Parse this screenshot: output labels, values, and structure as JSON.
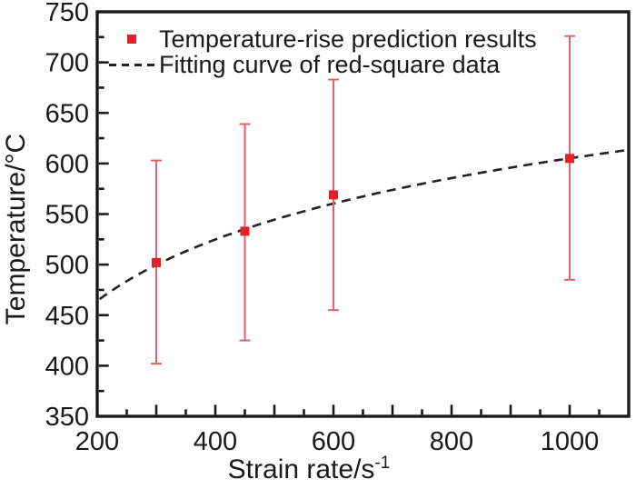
{
  "chart_data": {
    "type": "scatter",
    "title": "",
    "xlabel": "Strain rate/s",
    "xlabel_superscript": "-1",
    "ylabel": "Temperature/°C",
    "xlim": [
      200,
      1100
    ],
    "ylim": [
      350,
      750
    ],
    "grid": false,
    "legend_position": "top-left",
    "x_tick_labels": [
      "200",
      "400",
      "600",
      "800",
      "1000"
    ],
    "x_tick_label_values": [
      200,
      400,
      600,
      800,
      1000
    ],
    "x_major_tick_step": 100,
    "x_minor_tick_step": 50,
    "y_tick_labels": [
      "350",
      "400",
      "450",
      "500",
      "550",
      "600",
      "650",
      "700",
      "750"
    ],
    "y_tick_label_values": [
      350,
      400,
      450,
      500,
      550,
      600,
      650,
      700,
      750
    ],
    "y_major_tick_step": 50,
    "y_minor_tick_step": 25,
    "series": [
      {
        "name": "Temperature-rise prediction results",
        "kind": "scatter-errorbar",
        "marker": "square",
        "marker_color": "#e32227",
        "errorbar_color": "#dd646a",
        "points": [
          {
            "x": 300,
            "y": 502,
            "y_low": 402,
            "y_high": 603
          },
          {
            "x": 450,
            "y": 533,
            "y_low": 425,
            "y_high": 639
          },
          {
            "x": 600,
            "y": 569,
            "y_low": 455,
            "y_high": 683
          },
          {
            "x": 1000,
            "y": 605,
            "y_low": 485,
            "y_high": 726
          }
        ]
      },
      {
        "name": "Fitting curve of red-square data",
        "kind": "fit-curve",
        "style": "dashed",
        "color": "#222222",
        "fit": {
          "model": "T = a + b*ln(x)",
          "a": 0,
          "b": 87.6
        }
      }
    ],
    "colors": {
      "frame": "#1a1a1a",
      "text": "#1a1a1a",
      "background": "#ffffff"
    }
  }
}
